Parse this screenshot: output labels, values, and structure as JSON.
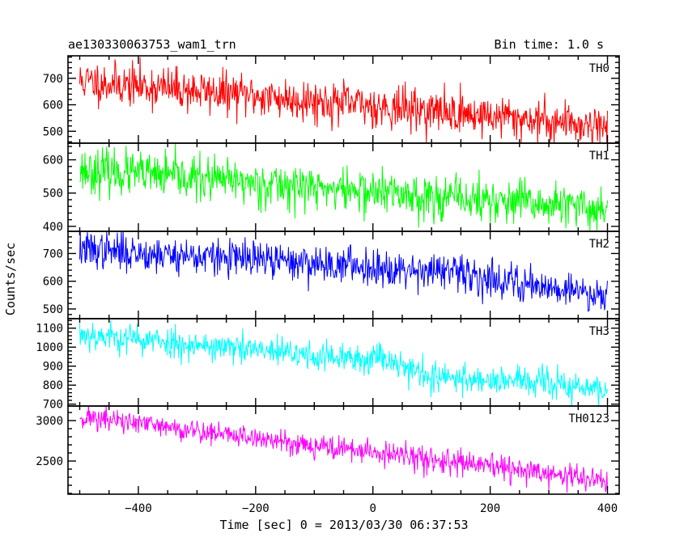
{
  "header": {
    "left_title": "ae130330063753_wam1_trn",
    "right_title": "Bin time: 1.0 s"
  },
  "axes": {
    "xlabel": "Time [sec] 0 = 2013/03/30 06:37:53",
    "ylabel": "Counts/sec"
  },
  "chart_data": {
    "type": "line",
    "xlim": [
      -520,
      420
    ],
    "x_range": [
      -500,
      400
    ],
    "bin_time_s": 1.0,
    "x_ticks": [
      -400,
      -200,
      0,
      200,
      400
    ],
    "x_tick_labels": [
      "−400",
      "−200",
      "0",
      "200",
      "400"
    ],
    "panels": [
      {
        "name": "TH0",
        "color": "#ff0000",
        "ylim": [
          455,
          785
        ],
        "y_ticks": [
          500,
          600,
          700
        ],
        "y_tick_labels": [
          "500",
          "600",
          "700"
        ],
        "start_level": 690,
        "end_level": 520,
        "noise": 40,
        "seed": 11,
        "knots": []
      },
      {
        "name": "TH1",
        "color": "#00ff00",
        "ylim": [
          385,
          650
        ],
        "y_ticks": [
          400,
          500,
          600
        ],
        "y_tick_labels": [
          "400",
          "500",
          "600"
        ],
        "start_level": 570,
        "end_level": 450,
        "noise": 33,
        "seed": 23,
        "knots": []
      },
      {
        "name": "TH2",
        "color": "#0000ff",
        "ylim": [
          465,
          780
        ],
        "y_ticks": [
          500,
          600,
          700
        ],
        "y_tick_labels": [
          "500",
          "600",
          "700"
        ],
        "start_level": 715,
        "end_level": 550,
        "noise": 33,
        "seed": 37,
        "knots": [
          [
            100,
            640
          ]
        ]
      },
      {
        "name": "TH3",
        "color": "#00ffff",
        "ylim": [
          690,
          1150
        ],
        "y_ticks": [
          700,
          800,
          900,
          1000,
          1100
        ],
        "y_tick_labels": [
          "700",
          "800",
          "900",
          "1000",
          "1100"
        ],
        "start_level": 1070,
        "end_level": 770,
        "noise": 40,
        "seed": 53,
        "knots": [
          [
            -20,
            930
          ],
          [
            10,
            960
          ],
          [
            100,
            840
          ],
          [
            260,
            820
          ]
        ]
      },
      {
        "name": "TH0123",
        "color": "#ff00ff",
        "ylim": [
          2090,
          3180
        ],
        "y_ticks": [
          2500,
          3000
        ],
        "y_tick_labels": [
          "2500",
          "3000"
        ],
        "start_level": 3050,
        "end_level": 2250,
        "noise": 75,
        "seed": 71,
        "knots": []
      }
    ]
  }
}
